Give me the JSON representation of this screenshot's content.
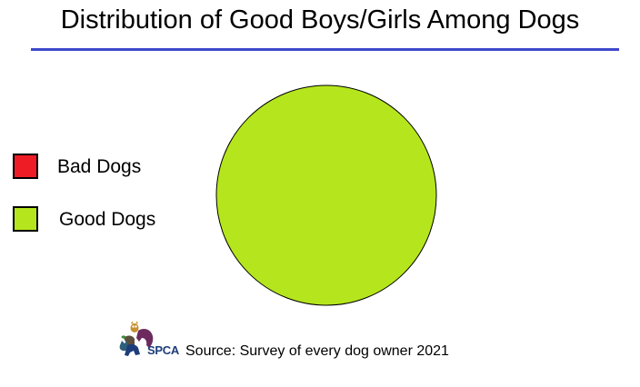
{
  "chart_data": {
    "type": "pie",
    "title": "Distribution of Good Boys/Girls Among Dogs",
    "categories": [
      "Bad Dogs",
      "Good Dogs"
    ],
    "values": [
      0,
      100
    ],
    "colors": [
      "#ee1c25",
      "#b5e61d"
    ],
    "legend_position": "left",
    "source": "Source: Survey of every dog owner 2021"
  },
  "colors": {
    "title_rule": "#3f48cc",
    "outline": "#000000"
  },
  "logo": {
    "text": "SPCA",
    "icon": "spca-animals-logo-icon"
  }
}
